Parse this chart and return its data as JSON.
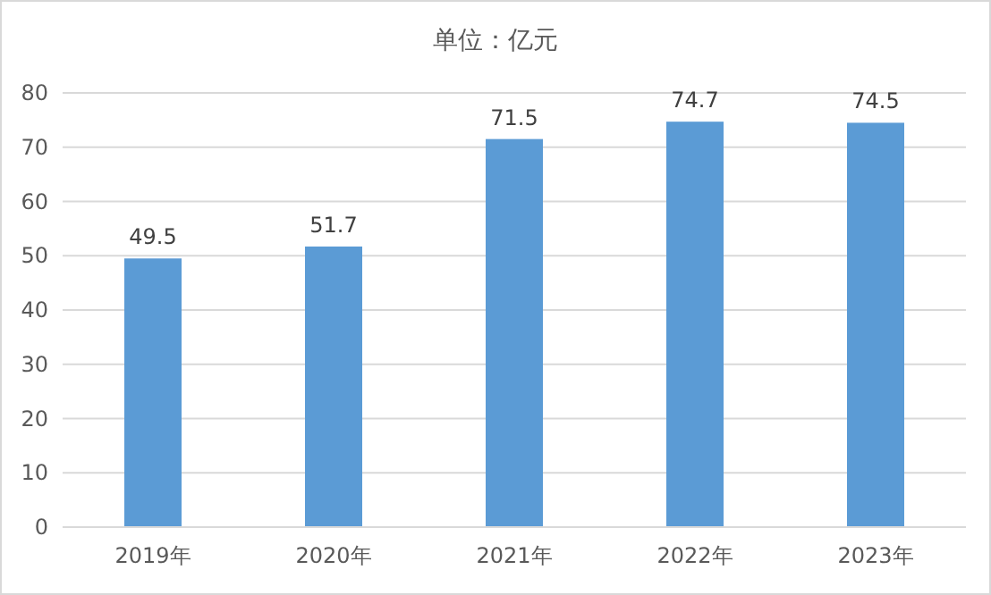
{
  "chart_data": {
    "type": "bar",
    "title": "单位：亿元",
    "categories": [
      "2019年",
      "2020年",
      "2021年",
      "2022年",
      "2023年"
    ],
    "values": [
      49.5,
      51.7,
      71.5,
      74.7,
      74.5
    ],
    "color": "#5b9bd5",
    "ylim": [
      0,
      80
    ],
    "yticks": [
      0,
      10,
      20,
      30,
      40,
      50,
      60,
      70,
      80
    ],
    "grid": "y",
    "data_labels": true
  }
}
